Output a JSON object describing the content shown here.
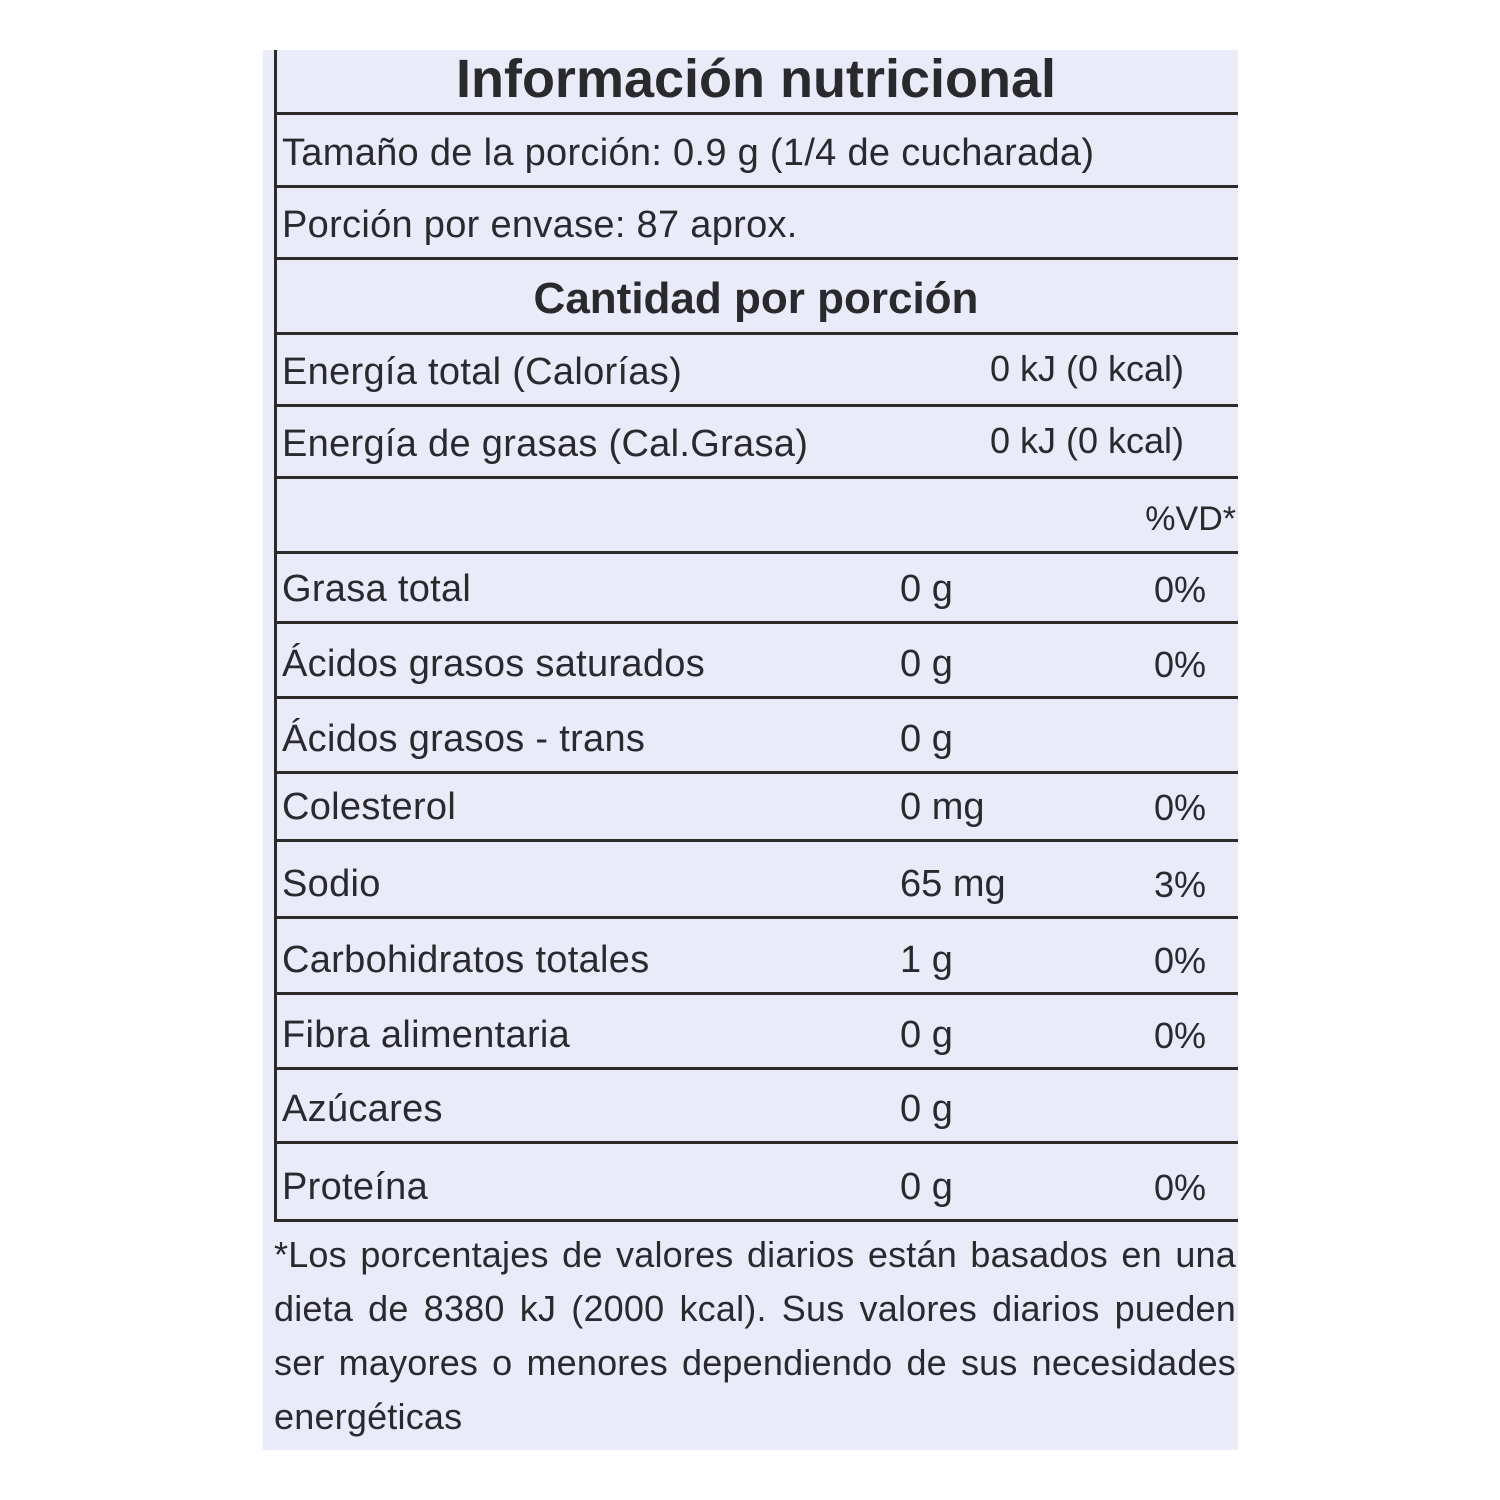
{
  "title": "Información nutricional",
  "serving_size": "Tamaño de la porción: 0.9 g (1/4 de cucharada)",
  "servings_per_container": "Porción por envase: 87 aprox.",
  "amount_header": "Cantidad por porción",
  "energy": [
    {
      "label": "Energía total (Calorías)",
      "value": "0 kJ (0 kcal)"
    },
    {
      "label": "Energía de grasas (Cal.Grasa)",
      "value": "0 kJ (0 kcal)"
    }
  ],
  "dv_header": "%VD*",
  "nutrients": [
    {
      "label": "Grasa total",
      "amount": "0 g",
      "dv": "0%"
    },
    {
      "label": "Ácidos grasos saturados",
      "amount": "0 g",
      "dv": "0%"
    },
    {
      "label": "Ácidos grasos - trans",
      "amount": "0 g",
      "dv": ""
    },
    {
      "label": "Colesterol",
      "amount": "0 mg",
      "dv": "0%"
    },
    {
      "label": "Sodio",
      "amount": "65 mg",
      "dv": "3%"
    },
    {
      "label": "Carbohidratos totales",
      "amount": "1 g",
      "dv": "0%"
    },
    {
      "label": "Fibra alimentaria",
      "amount": "0 g",
      "dv": "0%"
    },
    {
      "label": "Azúcares",
      "amount": "0 g",
      "dv": ""
    },
    {
      "label": "Proteína",
      "amount": "0 g",
      "dv": "0%"
    }
  ],
  "footnote": "*Los porcentajes de valores diarios están basados en una dieta de 8380 kJ (2000 kcal). Sus valores diarios pueden ser mayores o menores dependiendo de sus necesidades energéticas"
}
